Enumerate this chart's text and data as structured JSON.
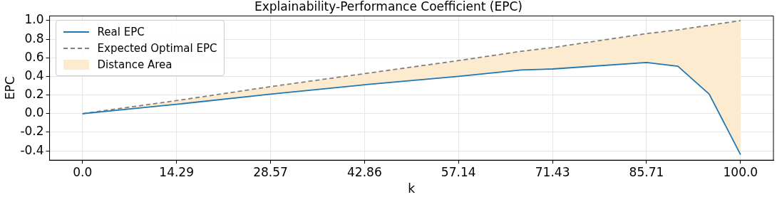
{
  "chart_data": {
    "type": "line",
    "title": "Explainability-Performance Coefficient (EPC)",
    "xlabel": "k",
    "ylabel": "EPC",
    "xlim": [
      -5,
      105
    ],
    "xticks": [
      {
        "value": 0,
        "label": "0.0"
      },
      14.29,
      28.57,
      42.86,
      57.14,
      71.43,
      85.71,
      {
        "value": 100,
        "label": "100.0"
      }
    ],
    "ylim": [
      -0.5,
      1.05
    ],
    "yticks": [
      {
        "value": -0.4,
        "label": "-0.4"
      },
      {
        "value": -0.2,
        "label": "-0.2"
      },
      {
        "value": 0,
        "label": "0.0"
      },
      {
        "value": 0.2,
        "label": "0.2"
      },
      {
        "value": 0.4,
        "label": "0.4"
      },
      {
        "value": 0.6,
        "label": "0.6"
      },
      {
        "value": 0.8,
        "label": "0.8"
      },
      {
        "value": 1,
        "label": "1.0"
      }
    ],
    "grid": true,
    "legend": "top left",
    "marker": "none",
    "series": [
      {
        "name": "Real EPC",
        "type": "line",
        "color": "#1f77b4",
        "line_style": "solid",
        "x": [
          0,
          14.29,
          28.57,
          42.86,
          57.14,
          66.67,
          71.43,
          85.71,
          90.48,
          95.24,
          100
        ],
        "values": [
          0,
          0.1,
          0.21,
          0.31,
          0.4,
          0.47,
          0.48,
          0.55,
          0.51,
          0.21,
          -0.44
        ]
      },
      {
        "name": "Expected Optimal EPC",
        "type": "line",
        "color": "#808080",
        "line_style": "dashed",
        "x": [
          0,
          14.29,
          28.57,
          42.86,
          57.14,
          66.67,
          71.43,
          85.71,
          90.48,
          95.24,
          100
        ],
        "values": [
          0,
          0.14,
          0.29,
          0.43,
          0.57,
          0.67,
          0.71,
          0.86,
          0.9,
          0.95,
          1
        ]
      },
      {
        "name": "Distance Area",
        "type": "area",
        "color": "#fdebd0",
        "x": [
          0,
          14.29,
          28.57,
          42.86,
          57.14,
          66.67,
          71.43,
          85.71,
          90.48,
          95.24,
          100
        ],
        "values": [
          null,
          null,
          null,
          null,
          null,
          null,
          null,
          null,
          null,
          null,
          null
        ],
        "lower": [
          0,
          0.1,
          0.21,
          0.31,
          0.4,
          0.47,
          0.48,
          0.55,
          0.51,
          0.21,
          -0.44
        ],
        "upper": [
          0,
          0.14,
          0.29,
          0.43,
          0.57,
          0.67,
          0.71,
          0.86,
          0.9,
          0.95,
          1
        ]
      }
    ]
  }
}
